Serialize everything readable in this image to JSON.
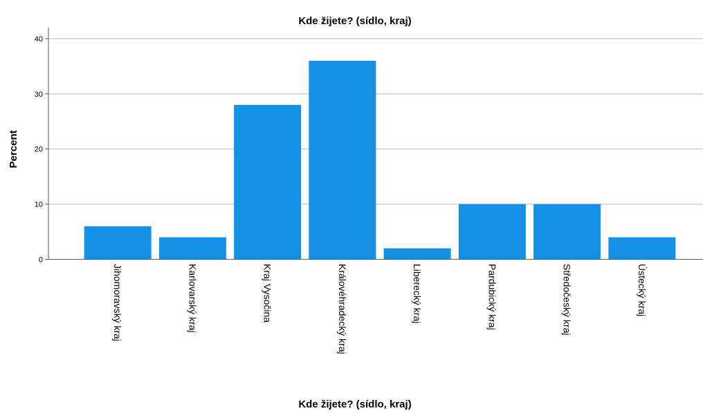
{
  "chart_data": {
    "type": "bar",
    "title": "Kde žijete? (sídlo, kraj)",
    "xlabel": "Kde žijete? (sídlo, kraj)",
    "ylabel": "Percent",
    "categories": [
      "Jihomoravský kraj",
      "Karlovarský kraj",
      "Kraj Vysočina",
      "Královéhradecký kraj",
      "Liberecký kraj",
      "Pardubický kraj",
      "Středočeský kraj",
      "Ústecký kraj"
    ],
    "values": [
      6,
      4,
      28,
      36,
      2,
      10,
      10,
      4
    ],
    "ylim": [
      0,
      42
    ],
    "yticks": [
      "0",
      "10",
      "20",
      "30",
      "40"
    ],
    "grid": "horizontal",
    "bar_color": "#1490e5",
    "gridline_color": "#b9b9b9",
    "axis_color": "#5a5a5a"
  }
}
